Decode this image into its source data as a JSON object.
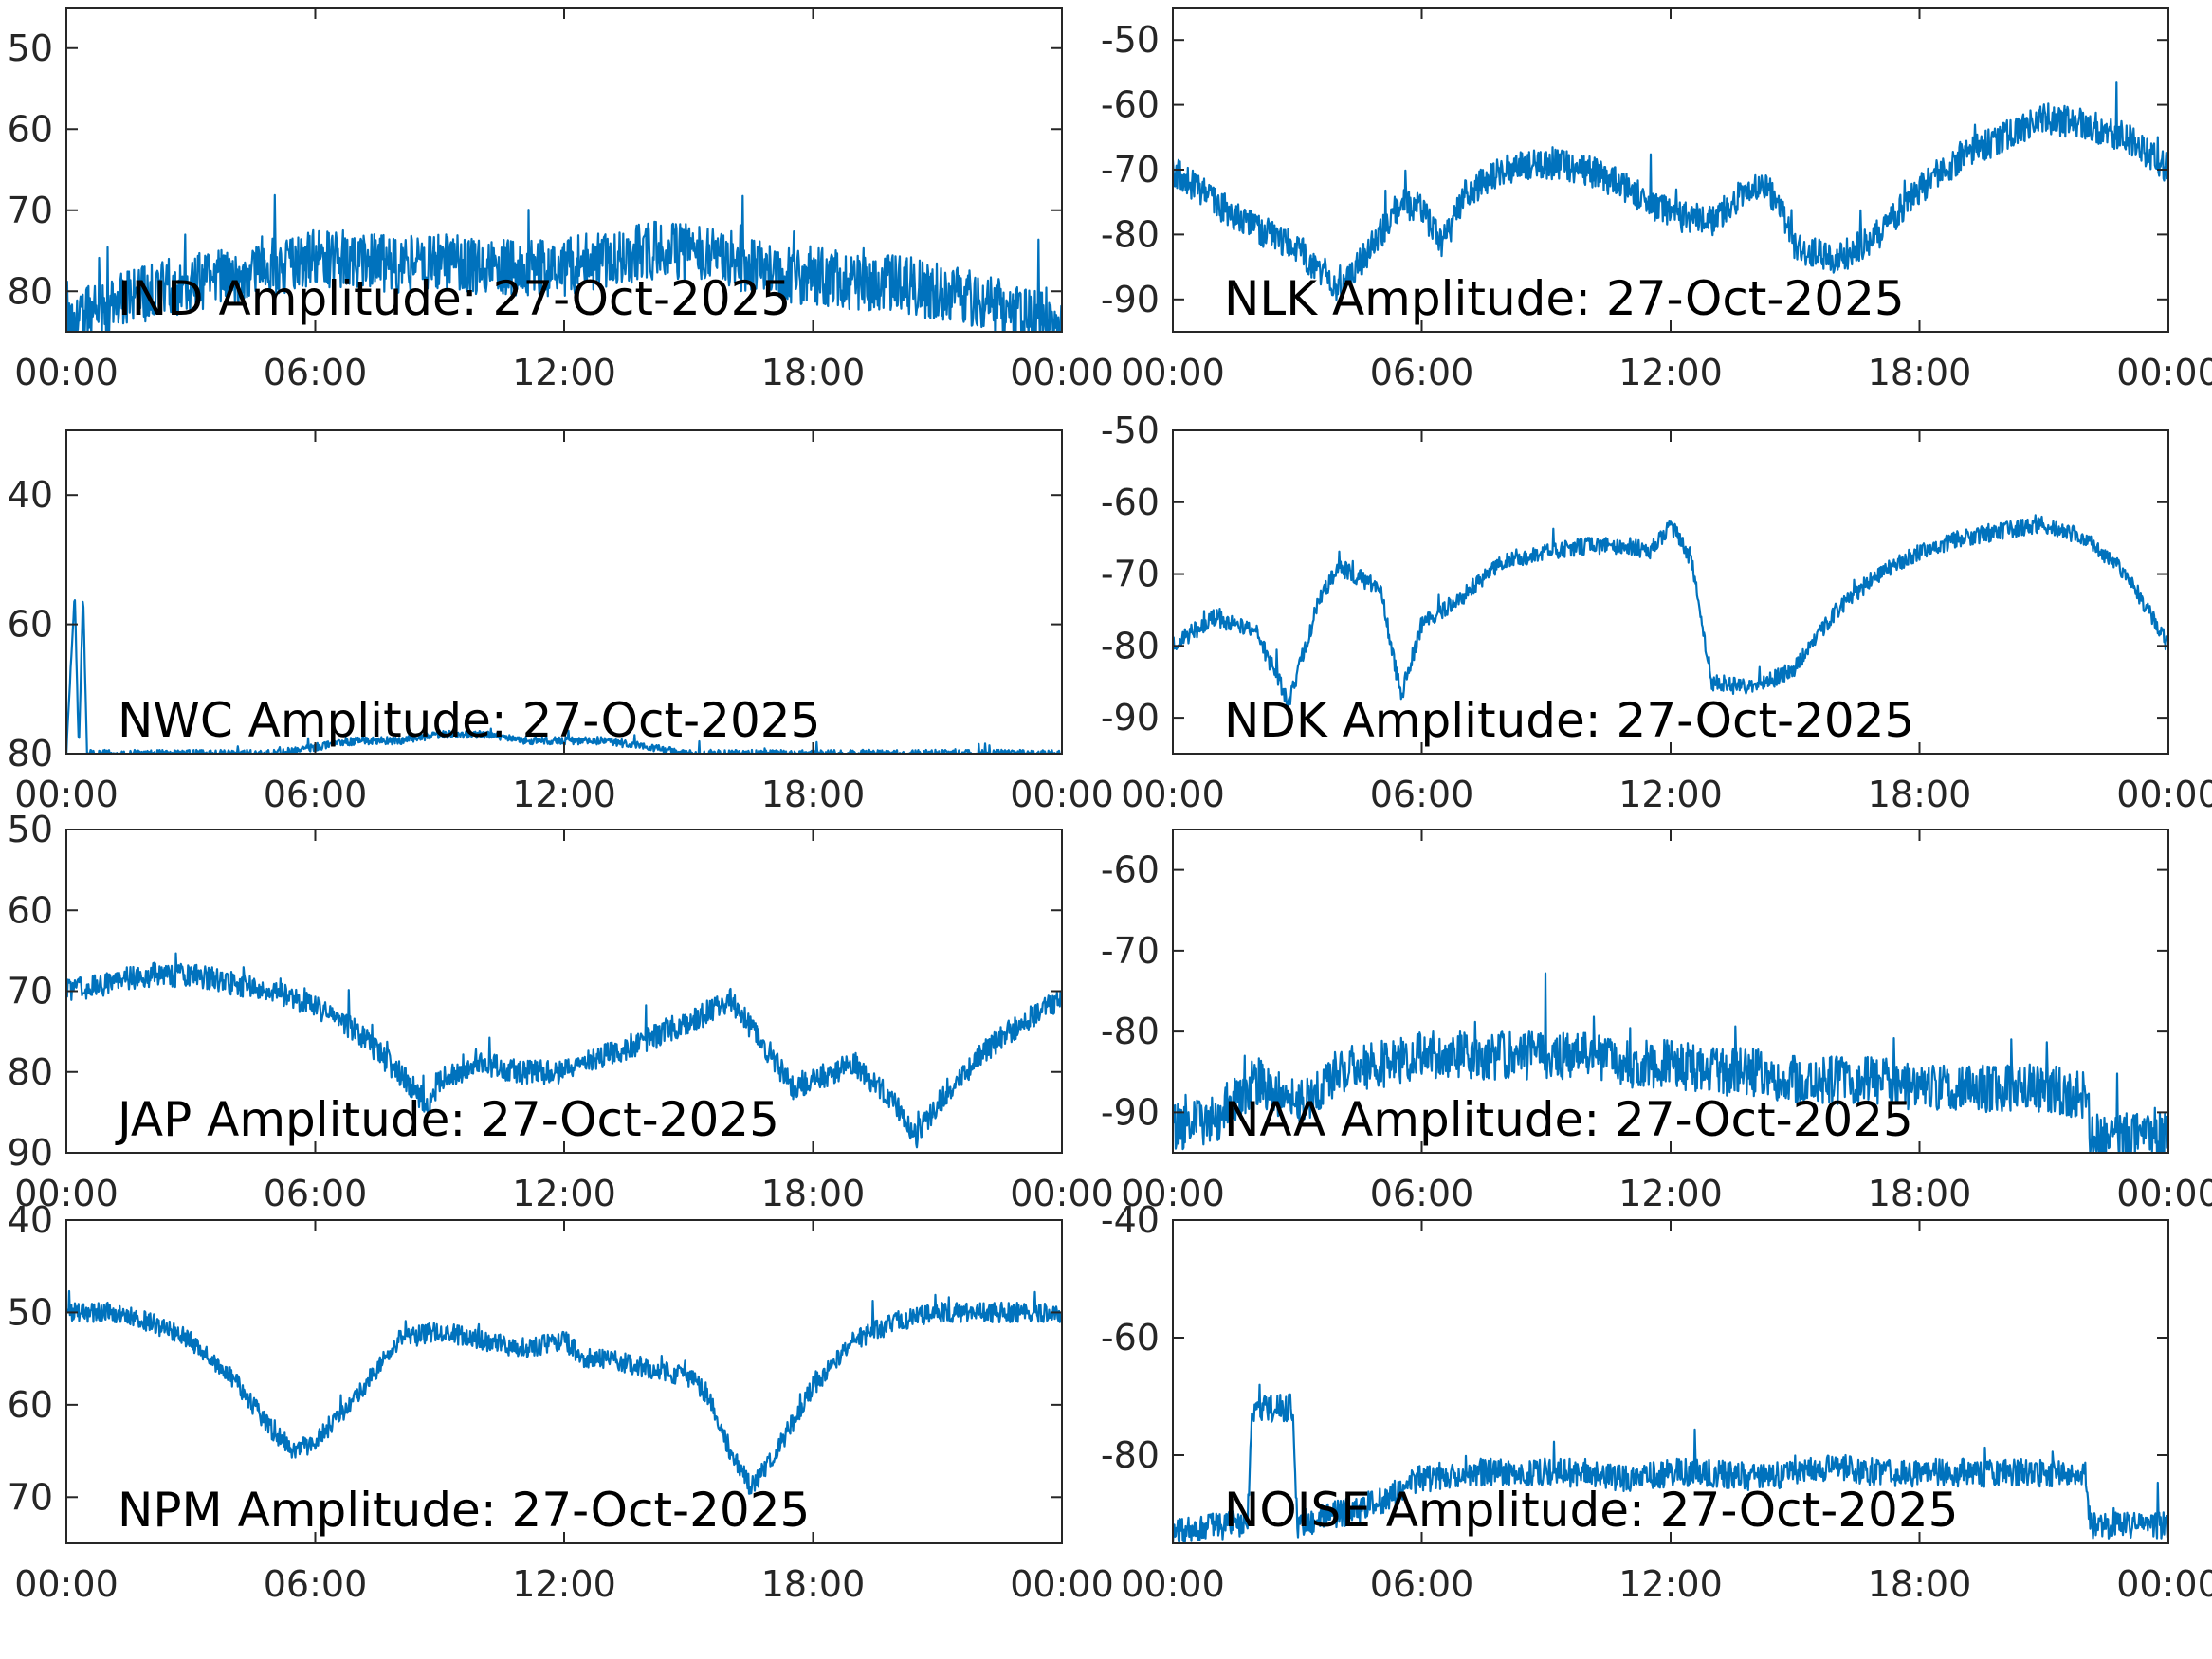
{
  "colors": {
    "series": "#0072BD",
    "axis": "#262626",
    "title": "#000000"
  },
  "chart_data": [
    {
      "type": "line",
      "title": "IND Amplitude: 27-Oct-2025",
      "xlabel": "",
      "ylabel": "",
      "xlim": [
        0,
        24
      ],
      "ylim": [
        -85,
        -45
      ],
      "xticks": [
        "00:00",
        "06:00",
        "12:00",
        "18:00",
        "00:00"
      ],
      "yticks": [
        -80,
        -70,
        -60,
        -50
      ],
      "ytick_labels": [
        "80",
        "70",
        "60",
        "50"
      ],
      "noise": 6,
      "series": [
        {
          "x": [
            0,
            1,
            2,
            3,
            4,
            5,
            6,
            7,
            8,
            9,
            10,
            11,
            12,
            13,
            14,
            15,
            16,
            17,
            18,
            19,
            20,
            21,
            22,
            23,
            24
          ],
          "values": [
            -84,
            -82,
            -80,
            -79,
            -78,
            -77,
            -76,
            -76,
            -77,
            -76,
            -77,
            -77,
            -77,
            -76,
            -75,
            -75,
            -76,
            -78,
            -78,
            -79,
            -79,
            -80,
            -81,
            -83,
            -84
          ]
        }
      ]
    },
    {
      "type": "line",
      "title": "NLK Amplitude: 27-Oct-2025",
      "xlabel": "",
      "ylabel": "",
      "xlim": [
        0,
        24
      ],
      "ylim": [
        -95,
        -45
      ],
      "xticks": [
        "00:00",
        "06:00",
        "12:00",
        "18:00",
        "00:00"
      ],
      "yticks": [
        -90,
        -80,
        -70,
        -60,
        -50
      ],
      "ytick_labels": [
        "-90",
        "-80",
        "-70",
        "-60",
        "-50"
      ],
      "noise": 4,
      "series": [
        {
          "x": [
            0,
            1,
            2,
            3,
            4,
            5,
            5.5,
            6,
            6.5,
            7,
            8,
            9,
            10,
            11,
            12,
            13,
            14,
            14.5,
            15,
            16,
            17,
            18,
            19,
            20,
            21,
            22,
            23,
            24
          ],
          "values": [
            -70,
            -75,
            -79,
            -82,
            -89,
            -80,
            -75,
            -76,
            -82,
            -74,
            -70,
            -69,
            -70,
            -73,
            -77,
            -78,
            -72,
            -74,
            -82,
            -84,
            -80,
            -73,
            -68,
            -65,
            -62,
            -63,
            -65,
            -70
          ]
        }
      ]
    },
    {
      "type": "line",
      "title": "NWC Amplitude: 27-Oct-2025",
      "xlabel": "",
      "ylabel": "",
      "xlim": [
        0,
        24
      ],
      "ylim": [
        -80,
        -30
      ],
      "xticks": [
        "00:00",
        "06:00",
        "12:00",
        "18:00",
        "00:00"
      ],
      "yticks": [
        -80,
        -60,
        -40
      ],
      "ytick_labels": [
        "80",
        "60",
        "40"
      ],
      "noise": 1,
      "series": [
        {
          "x": [
            0,
            0.2,
            0.3,
            0.4,
            0.5,
            0.6,
            1,
            2,
            3,
            4,
            5,
            6,
            7,
            8,
            9,
            10,
            11,
            12,
            13,
            14,
            15,
            16,
            17,
            18,
            19,
            20,
            21,
            21.5,
            22,
            23,
            24
          ],
          "values": [
            -80,
            -55,
            -80,
            -55,
            -80,
            -80,
            -80,
            -80,
            -80,
            -80,
            -80,
            -79,
            -78,
            -78,
            -77,
            -77,
            -78,
            -78,
            -78,
            -79,
            -80,
            -80,
            -80,
            -80,
            -80,
            -80,
            -80,
            -80,
            -80,
            -80,
            -80
          ]
        }
      ]
    },
    {
      "type": "line",
      "title": "NDK Amplitude: 27-Oct-2025",
      "xlabel": "",
      "ylabel": "",
      "xlim": [
        0,
        24
      ],
      "ylim": [
        -95,
        -50
      ],
      "xticks": [
        "00:00",
        "06:00",
        "12:00",
        "18:00",
        "00:00"
      ],
      "yticks": [
        -90,
        -80,
        -70,
        -60,
        -50
      ],
      "ytick_labels": [
        "-90",
        "-80",
        "-70",
        "-60",
        "-50"
      ],
      "noise": 2,
      "series": [
        {
          "x": [
            0,
            1,
            2,
            2.8,
            3.5,
            4,
            5,
            5.5,
            6,
            7,
            8,
            9,
            10,
            11,
            11.5,
            12,
            12.5,
            13,
            14,
            15,
            16,
            17,
            18,
            19,
            20,
            21,
            22,
            23,
            24
          ],
          "values": [
            -80,
            -76,
            -78,
            -88,
            -74,
            -69,
            -72,
            -87,
            -77,
            -73,
            -68,
            -67,
            -66,
            -66,
            -67,
            -63,
            -68,
            -85,
            -86,
            -83,
            -75,
            -70,
            -67,
            -65,
            -64,
            -63,
            -65,
            -70,
            -80
          ]
        }
      ]
    },
    {
      "type": "line",
      "title": "JAP Amplitude: 27-Oct-2025",
      "xlabel": "",
      "ylabel": "",
      "xlim": [
        0,
        24
      ],
      "ylim": [
        -90,
        -50
      ],
      "xticks": [
        "00:00",
        "06:00",
        "12:00",
        "18:00",
        "00:00"
      ],
      "yticks": [
        -90,
        -80,
        -70,
        -60,
        -50
      ],
      "ytick_labels": [
        "90",
        "80",
        "70",
        "60",
        "50"
      ],
      "noise": 2.5,
      "series": [
        {
          "x": [
            0,
            1,
            2,
            3,
            4,
            5,
            6,
            7,
            8,
            8.7,
            9,
            10,
            11,
            12,
            13,
            14,
            15,
            16,
            17,
            17.5,
            18,
            19,
            20,
            20.5,
            21,
            22,
            23,
            24
          ],
          "values": [
            -70,
            -69,
            -68,
            -68,
            -69,
            -70,
            -72,
            -75,
            -80,
            -84,
            -81,
            -79,
            -80,
            -80,
            -78,
            -76,
            -74,
            -71,
            -78,
            -82,
            -81,
            -79,
            -84,
            -88,
            -84,
            -78,
            -74,
            -71
          ]
        }
      ]
    },
    {
      "type": "line",
      "title": "NAA Amplitude: 27-Oct-2025",
      "xlabel": "",
      "ylabel": "",
      "xlim": [
        0,
        24
      ],
      "ylim": [
        -95,
        -55
      ],
      "xticks": [
        "00:00",
        "06:00",
        "12:00",
        "18:00",
        "00:00"
      ],
      "yticks": [
        -90,
        -80,
        -70,
        -60
      ],
      "ytick_labels": [
        "-90",
        "-80",
        "-70",
        "-60"
      ],
      "noise": 5,
      "series": [
        {
          "x": [
            0,
            1,
            2,
            3,
            4,
            5,
            6,
            7,
            8,
            9,
            10,
            11,
            12,
            13,
            14,
            15,
            16,
            17,
            18,
            19,
            20,
            21,
            22,
            22.1,
            23,
            24
          ],
          "values": [
            -92,
            -91,
            -86,
            -89,
            -85,
            -84,
            -83,
            -83,
            -83,
            -83,
            -83,
            -84,
            -84,
            -85,
            -85,
            -86,
            -86,
            -86,
            -87,
            -87,
            -87,
            -87,
            -88,
            -93,
            -93,
            -93
          ]
        }
      ]
    },
    {
      "type": "line",
      "title": "NPM Amplitude: 27-Oct-2025",
      "xlabel": "",
      "ylabel": "",
      "xlim": [
        0,
        24
      ],
      "ylim": [
        -75,
        -40
      ],
      "xticks": [
        "00:00",
        "06:00",
        "12:00",
        "18:00",
        "00:00"
      ],
      "yticks": [
        -70,
        -60,
        -50,
        -40
      ],
      "ytick_labels": [
        "70",
        "60",
        "50",
        "40"
      ],
      "noise": 1.8,
      "series": [
        {
          "x": [
            0,
            1,
            2,
            3,
            4,
            5,
            5.5,
            6,
            7,
            8,
            9,
            10,
            11,
            12,
            12.5,
            13,
            14,
            15,
            15.5,
            16,
            16.5,
            17,
            18,
            19,
            20,
            21,
            22,
            23,
            24
          ],
          "values": [
            -50,
            -50,
            -51,
            -53,
            -57,
            -63,
            -65,
            -64,
            -59,
            -53,
            -52,
            -53,
            -54,
            -53,
            -55,
            -55,
            -56,
            -57,
            -59,
            -65,
            -69,
            -66,
            -58,
            -53,
            -51,
            -50,
            -50,
            -50,
            -50
          ]
        }
      ]
    },
    {
      "type": "line",
      "title": "NOISE Amplitude: 27-Oct-2025",
      "xlabel": "",
      "ylabel": "",
      "xlim": [
        0,
        24
      ],
      "ylim": [
        -95,
        -40
      ],
      "xticks": [
        "00:00",
        "06:00",
        "12:00",
        "18:00",
        "00:00"
      ],
      "yticks": [
        -80,
        -60,
        -40
      ],
      "ytick_labels": [
        "-80",
        "-60",
        "-40"
      ],
      "noise": 4,
      "series": [
        {
          "x": [
            0,
            1,
            1.8,
            1.9,
            2.9,
            3.0,
            4,
            5,
            6,
            7,
            8,
            9,
            10,
            11,
            12,
            13,
            14,
            15,
            16,
            17,
            18,
            19,
            20,
            21,
            22,
            22.1,
            23,
            24
          ],
          "values": [
            -93,
            -92,
            -92,
            -72,
            -72,
            -92,
            -90,
            -88,
            -84,
            -83,
            -83,
            -83,
            -83,
            -84,
            -83,
            -83,
            -84,
            -83,
            -82,
            -83,
            -83,
            -83,
            -83,
            -83,
            -83,
            -92,
            -92,
            -92
          ]
        }
      ]
    }
  ]
}
